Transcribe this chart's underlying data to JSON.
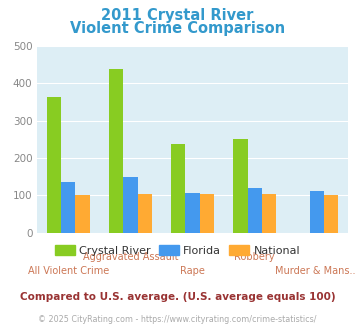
{
  "title_line1": "2011 Crystal River",
  "title_line2": "Violent Crime Comparison",
  "title_color": "#3399cc",
  "categories": [
    "All Violent Crime",
    "Aggravated Assault",
    "Rape",
    "Robbery",
    "Murder & Mans..."
  ],
  "series": {
    "Crystal River": [
      365,
      438,
      238,
      252,
      0
    ],
    "Florida": [
      137,
      148,
      105,
      120,
      112
    ],
    "National": [
      102,
      103,
      103,
      103,
      102
    ]
  },
  "colors": {
    "Crystal River": "#88cc22",
    "Florida": "#4499ee",
    "National": "#ffaa33"
  },
  "ylim": [
    0,
    500
  ],
  "yticks": [
    0,
    100,
    200,
    300,
    400,
    500
  ],
  "bg_color": "#ddeef5",
  "grid_color": "#ffffff",
  "xlabel_top": [
    "",
    "Aggravated Assault",
    "",
    "Robbery",
    ""
  ],
  "xlabel_bot": [
    "All Violent Crime",
    "",
    "Rape",
    "",
    "Murder & Mans..."
  ],
  "xlabel_color": "#cc7755",
  "xlabel_fontsize": 7.0,
  "ylabel_fontsize": 7.5,
  "ylabel_color": "#888888",
  "legend_text_color": "#333333",
  "legend_fontsize": 8,
  "subtitle": "Compared to U.S. average. (U.S. average equals 100)",
  "subtitle_color": "#993333",
  "subtitle_fontsize": 7.5,
  "copyright": "© 2025 CityRating.com - https://www.cityrating.com/crime-statistics/",
  "copyright_color": "#aaaaaa",
  "copyright_fontsize": 5.8
}
